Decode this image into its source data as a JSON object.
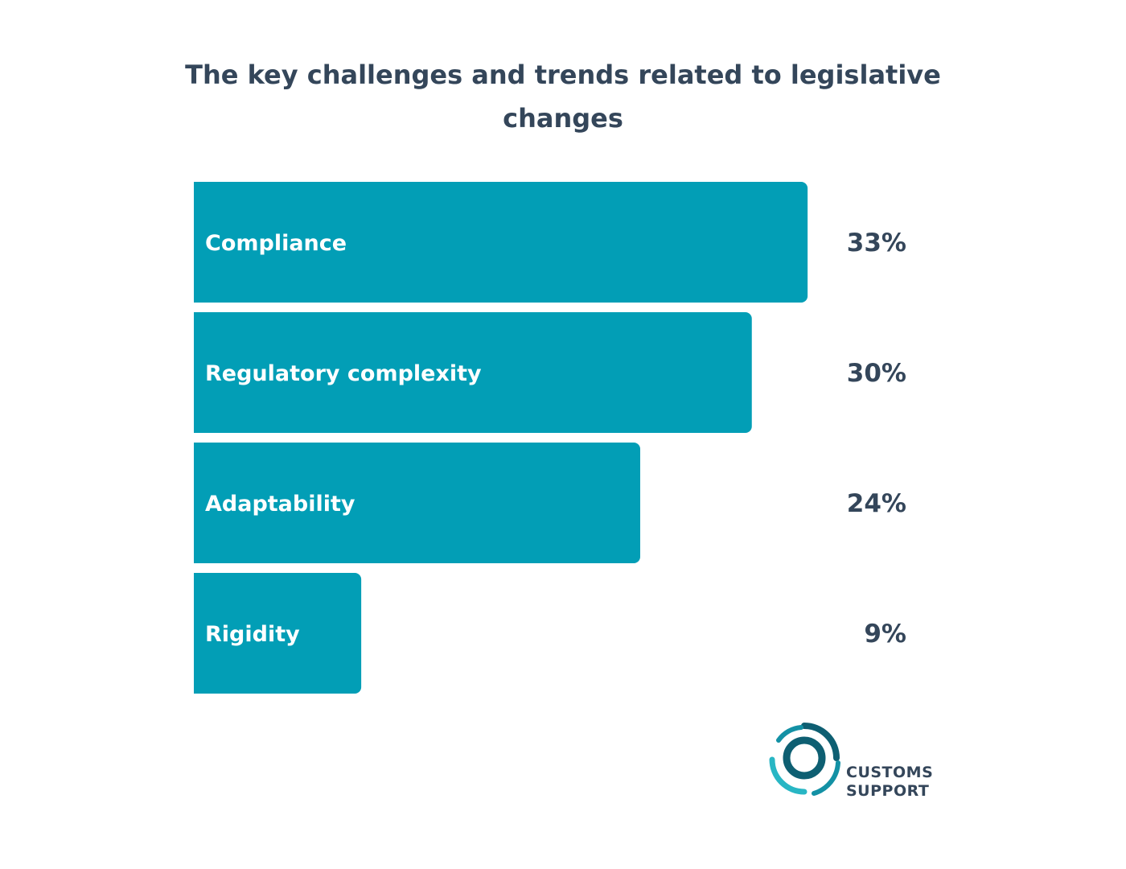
{
  "chart_data": {
    "type": "bar",
    "orientation": "horizontal",
    "title": "The key challenges and trends related to legislative changes",
    "categories": [
      "Compliance",
      "Regulatory complexity",
      "Adaptability",
      "Rigidity"
    ],
    "values": [
      33,
      30,
      24,
      9
    ],
    "value_labels": [
      "33%",
      "30%",
      "24%",
      "9%"
    ],
    "unit": "%",
    "xlim": [
      0,
      41.6
    ],
    "grid": false,
    "legend": "none",
    "bar_color": "#029eb6",
    "text_color": "#34465a"
  },
  "logo": {
    "line1": "CUSTOMS",
    "line2": "SUPPORT",
    "colors": [
      "#0e5f72",
      "#1391a5",
      "#28b6c4"
    ]
  }
}
